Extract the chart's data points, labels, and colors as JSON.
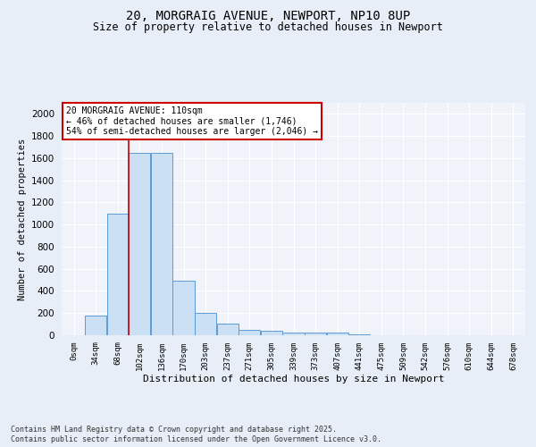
{
  "title_line1": "20, MORGRAIG AVENUE, NEWPORT, NP10 8UP",
  "title_line2": "Size of property relative to detached houses in Newport",
  "xlabel": "Distribution of detached houses by size in Newport",
  "ylabel": "Number of detached properties",
  "bar_labels": [
    "0sqm",
    "34sqm",
    "68sqm",
    "102sqm",
    "136sqm",
    "170sqm",
    "203sqm",
    "237sqm",
    "271sqm",
    "305sqm",
    "339sqm",
    "373sqm",
    "407sqm",
    "441sqm",
    "475sqm",
    "509sqm",
    "542sqm",
    "576sqm",
    "610sqm",
    "644sqm",
    "678sqm"
  ],
  "bar_values": [
    0,
    175,
    1100,
    1650,
    1650,
    490,
    205,
    105,
    45,
    40,
    22,
    22,
    22,
    8,
    0,
    0,
    0,
    0,
    0,
    0,
    0
  ],
  "bar_color": "#cce0f5",
  "bar_edge_color": "#5b9bd5",
  "vline_x": 2.5,
  "vline_color": "#cc0000",
  "annotation_text": "20 MORGRAIG AVENUE: 110sqm\n← 46% of detached houses are smaller (1,746)\n54% of semi-detached houses are larger (2,046) →",
  "annotation_box_color": "#ffffff",
  "annotation_box_edge_color": "#cc0000",
  "ylim": [
    0,
    2100
  ],
  "yticks": [
    0,
    200,
    400,
    600,
    800,
    1000,
    1200,
    1400,
    1600,
    1800,
    2000
  ],
  "background_color": "#e8eef7",
  "plot_background_color": "#f0f4fa",
  "grid_color": "#ffffff",
  "footer_line1": "Contains HM Land Registry data © Crown copyright and database right 2025.",
  "footer_line2": "Contains public sector information licensed under the Open Government Licence v3.0."
}
